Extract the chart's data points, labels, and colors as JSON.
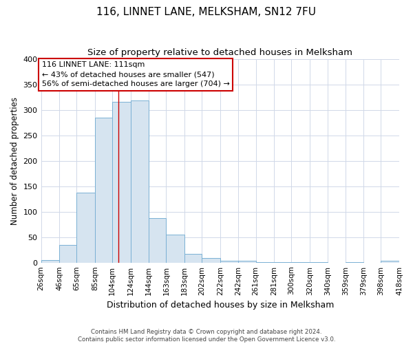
{
  "title": "116, LINNET LANE, MELKSHAM, SN12 7FU",
  "subtitle": "Size of property relative to detached houses in Melksham",
  "xlabel": "Distribution of detached houses by size in Melksham",
  "ylabel": "Number of detached properties",
  "footer_line1": "Contains HM Land Registry data © Crown copyright and database right 2024.",
  "footer_line2": "Contains public sector information licensed under the Open Government Licence v3.0.",
  "bin_edges": [
    26,
    46,
    65,
    85,
    104,
    124,
    144,
    163,
    183,
    202,
    222,
    242,
    261,
    281,
    300,
    320,
    340,
    359,
    379,
    398,
    418
  ],
  "bin_labels": [
    "26sqm",
    "46sqm",
    "65sqm",
    "85sqm",
    "104sqm",
    "124sqm",
    "144sqm",
    "163sqm",
    "183sqm",
    "202sqm",
    "222sqm",
    "242sqm",
    "261sqm",
    "281sqm",
    "300sqm",
    "320sqm",
    "340sqm",
    "359sqm",
    "379sqm",
    "398sqm",
    "418sqm"
  ],
  "counts": [
    5,
    35,
    138,
    285,
    315,
    318,
    88,
    55,
    17,
    9,
    4,
    3,
    1,
    1,
    1,
    1,
    0,
    1,
    0,
    3
  ],
  "bar_color": "#d6e4f0",
  "bar_edge_color": "#7ab0d4",
  "property_size": 111,
  "vline_color": "#cc0000",
  "annotation_line1": "116 LINNET LANE: 111sqm",
  "annotation_line2": "← 43% of detached houses are smaller (547)",
  "annotation_line3": "56% of semi-detached houses are larger (704) →",
  "annotation_box_color": "white",
  "annotation_box_edge_color": "#cc0000",
  "ylim": [
    0,
    400
  ],
  "yticks": [
    0,
    50,
    100,
    150,
    200,
    250,
    300,
    350,
    400
  ],
  "background_color": "#ffffff",
  "grid_color": "#d0d8e8",
  "title_fontsize": 11,
  "subtitle_fontsize": 9.5,
  "ylabel_fontsize": 8.5,
  "xlabel_fontsize": 9,
  "tick_fontsize": 7.5,
  "annotation_fontsize": 8
}
